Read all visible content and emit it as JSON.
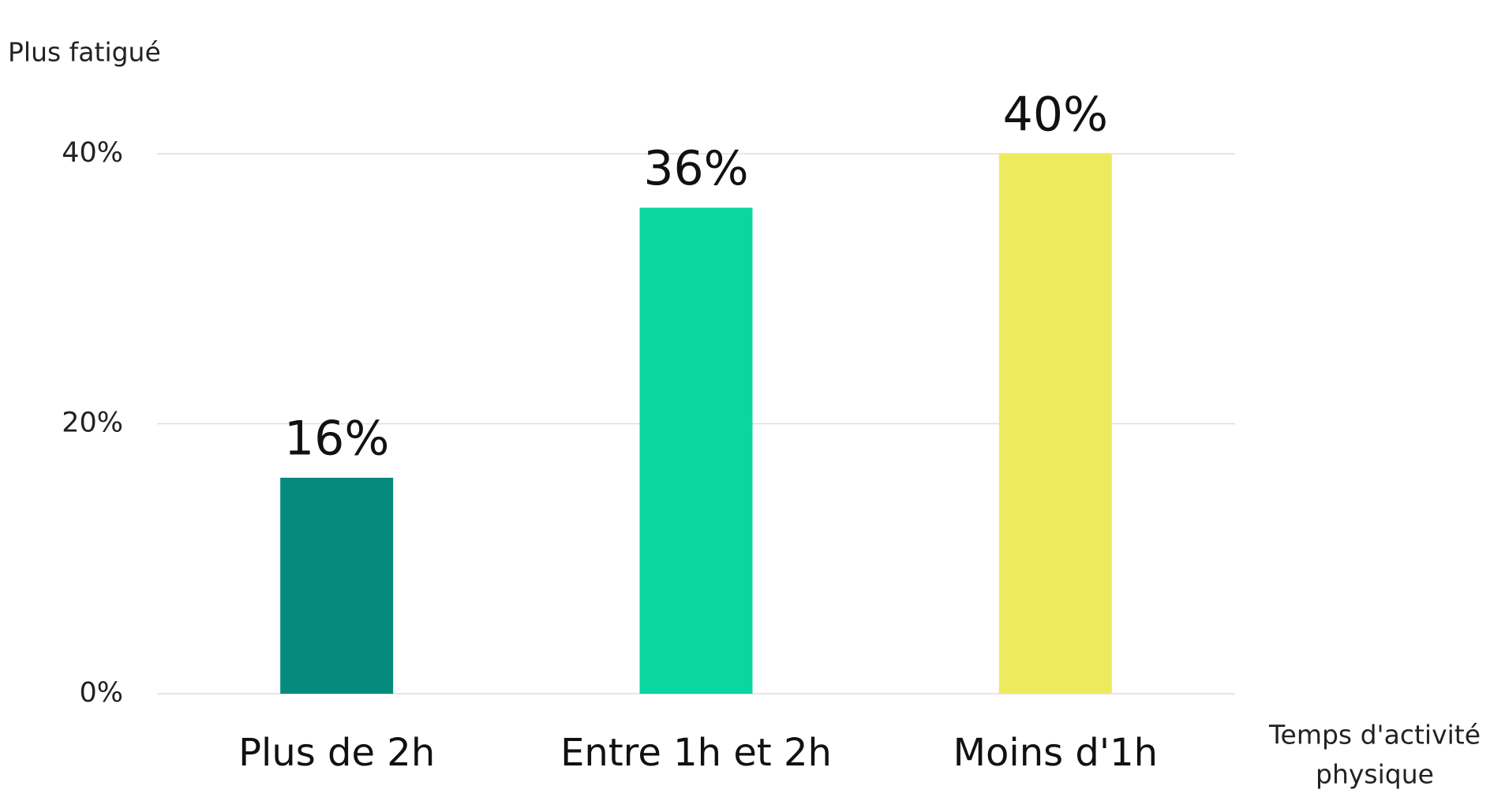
{
  "chart_data": {
    "type": "bar",
    "ylabel": "Plus fatigué",
    "xlabel": [
      "Temps d'activité",
      "physique"
    ],
    "categories": [
      "Plus de 2h",
      "Entre 1h et 2h",
      "Moins d'1h"
    ],
    "values": [
      16,
      36,
      40
    ],
    "value_labels": [
      "16%",
      "36%",
      "40%"
    ],
    "colors": [
      "#068a7e",
      "#0ad6a0",
      "#eeea5e"
    ],
    "ylim": [
      0,
      40
    ],
    "yticks": [
      {
        "value": 0,
        "label": "0%"
      },
      {
        "value": 20,
        "label": "20%"
      },
      {
        "value": 40,
        "label": "40%"
      }
    ],
    "grid": true
  }
}
